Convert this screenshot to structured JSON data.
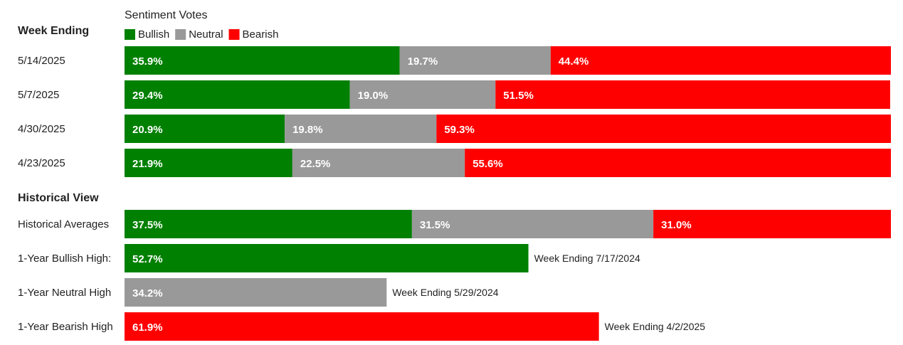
{
  "chart_data": {
    "type": "bar",
    "stacked": true,
    "orientation": "horizontal",
    "legend_title": "Sentiment Votes",
    "legend_position": "top-left",
    "weekly_heading": "Week Ending",
    "historical_heading": "Historical View",
    "value_suffix": "%",
    "colors": {
      "Bullish": "#008000",
      "Neutral": "#999999",
      "Bearish": "#ff0000"
    },
    "series_names": [
      "Bullish",
      "Neutral",
      "Bearish"
    ],
    "weekly": [
      {
        "label": "5/14/2025",
        "values": [
          35.9,
          19.7,
          44.4
        ]
      },
      {
        "label": "5/7/2025",
        "values": [
          29.4,
          19.0,
          51.5
        ]
      },
      {
        "label": "4/30/2025",
        "values": [
          20.9,
          19.8,
          59.3
        ]
      },
      {
        "label": "4/23/2025",
        "values": [
          21.9,
          22.5,
          55.6
        ]
      }
    ],
    "historical": [
      {
        "label": "Historical Averages",
        "values": [
          37.5,
          31.5,
          31.0
        ]
      },
      {
        "label": "1-Year Bullish High:",
        "single": "Bullish",
        "value": 52.7,
        "note": "Week Ending 7/17/2024"
      },
      {
        "label": "1-Year Neutral High",
        "single": "Neutral",
        "value": 34.2,
        "note": "Week Ending 5/29/2024"
      },
      {
        "label": "1-Year Bearish High",
        "single": "Bearish",
        "value": 61.9,
        "note": "Week Ending 4/2/2025"
      }
    ],
    "xlim": [
      0,
      100
    ]
  }
}
